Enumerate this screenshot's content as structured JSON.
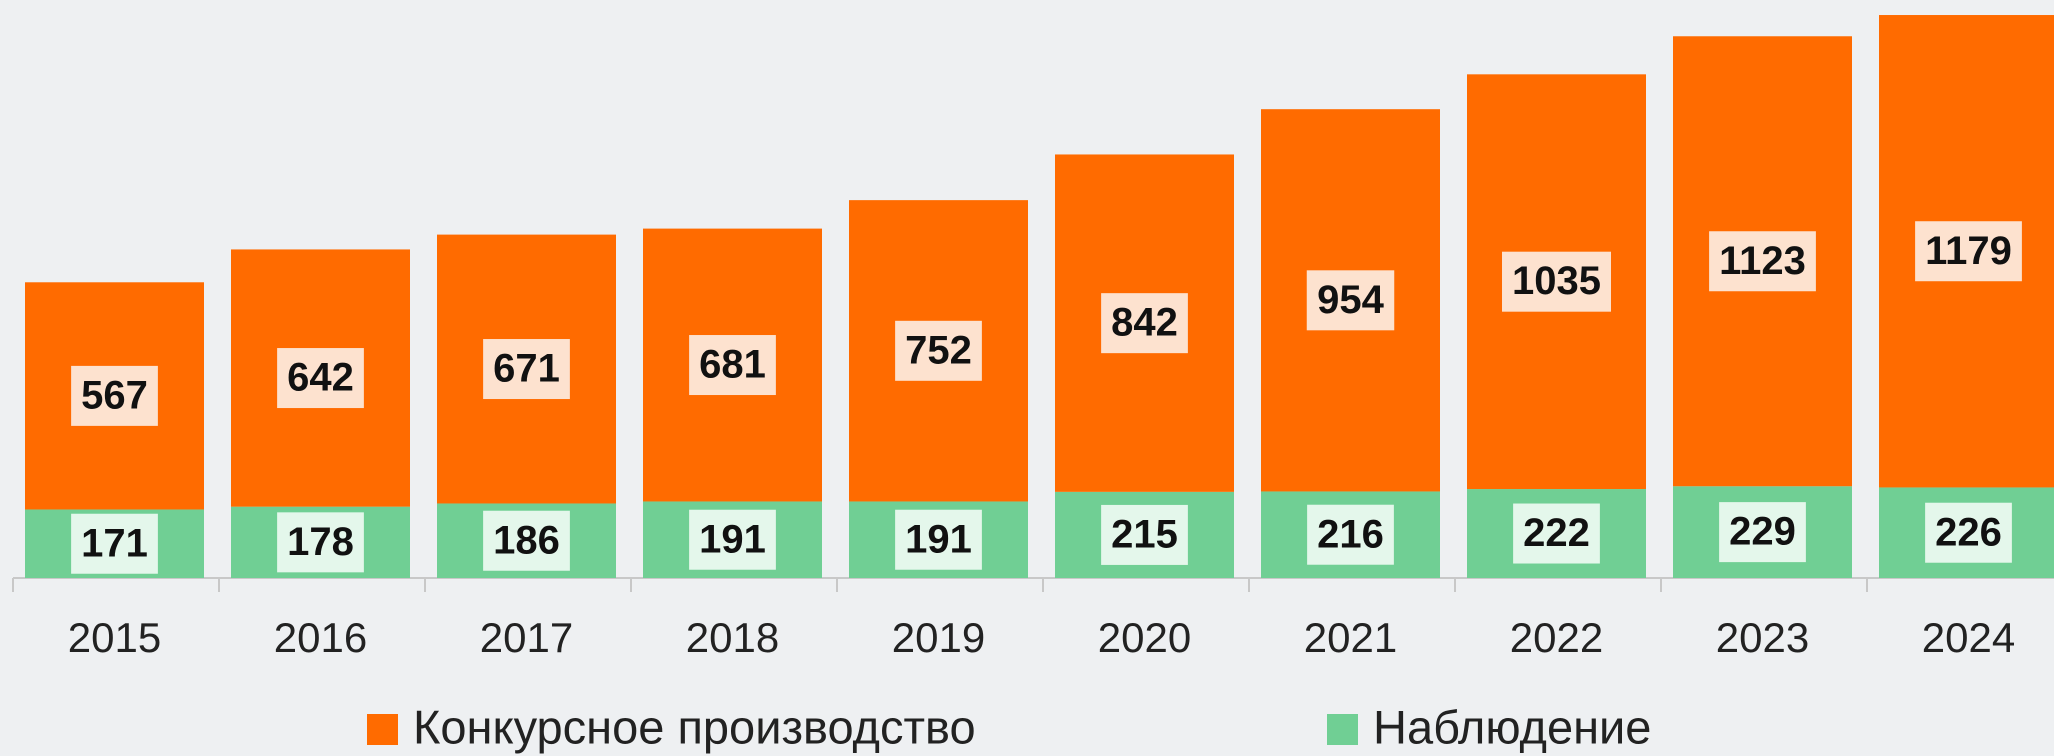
{
  "chart_data": {
    "type": "stacked_bar",
    "categories": [
      "2015",
      "2016",
      "2017",
      "2018",
      "2019",
      "2020",
      "2021",
      "2022",
      "2023",
      "2024"
    ],
    "series": [
      {
        "name": "Наблюдение",
        "color": "#70cf94",
        "label_bg": "#e4f7eb",
        "values": [
          171,
          178,
          186,
          191,
          191,
          215,
          216,
          222,
          229,
          226
        ]
      },
      {
        "name": "Конкурсное производство",
        "color": "#ff6b00",
        "label_bg": "#fde2cf",
        "values": [
          567,
          642,
          671,
          681,
          752,
          842,
          954,
          1035,
          1123,
          1179
        ]
      }
    ],
    "legend_order": [
      1,
      0
    ],
    "ylim": [
      0,
      1440
    ]
  }
}
